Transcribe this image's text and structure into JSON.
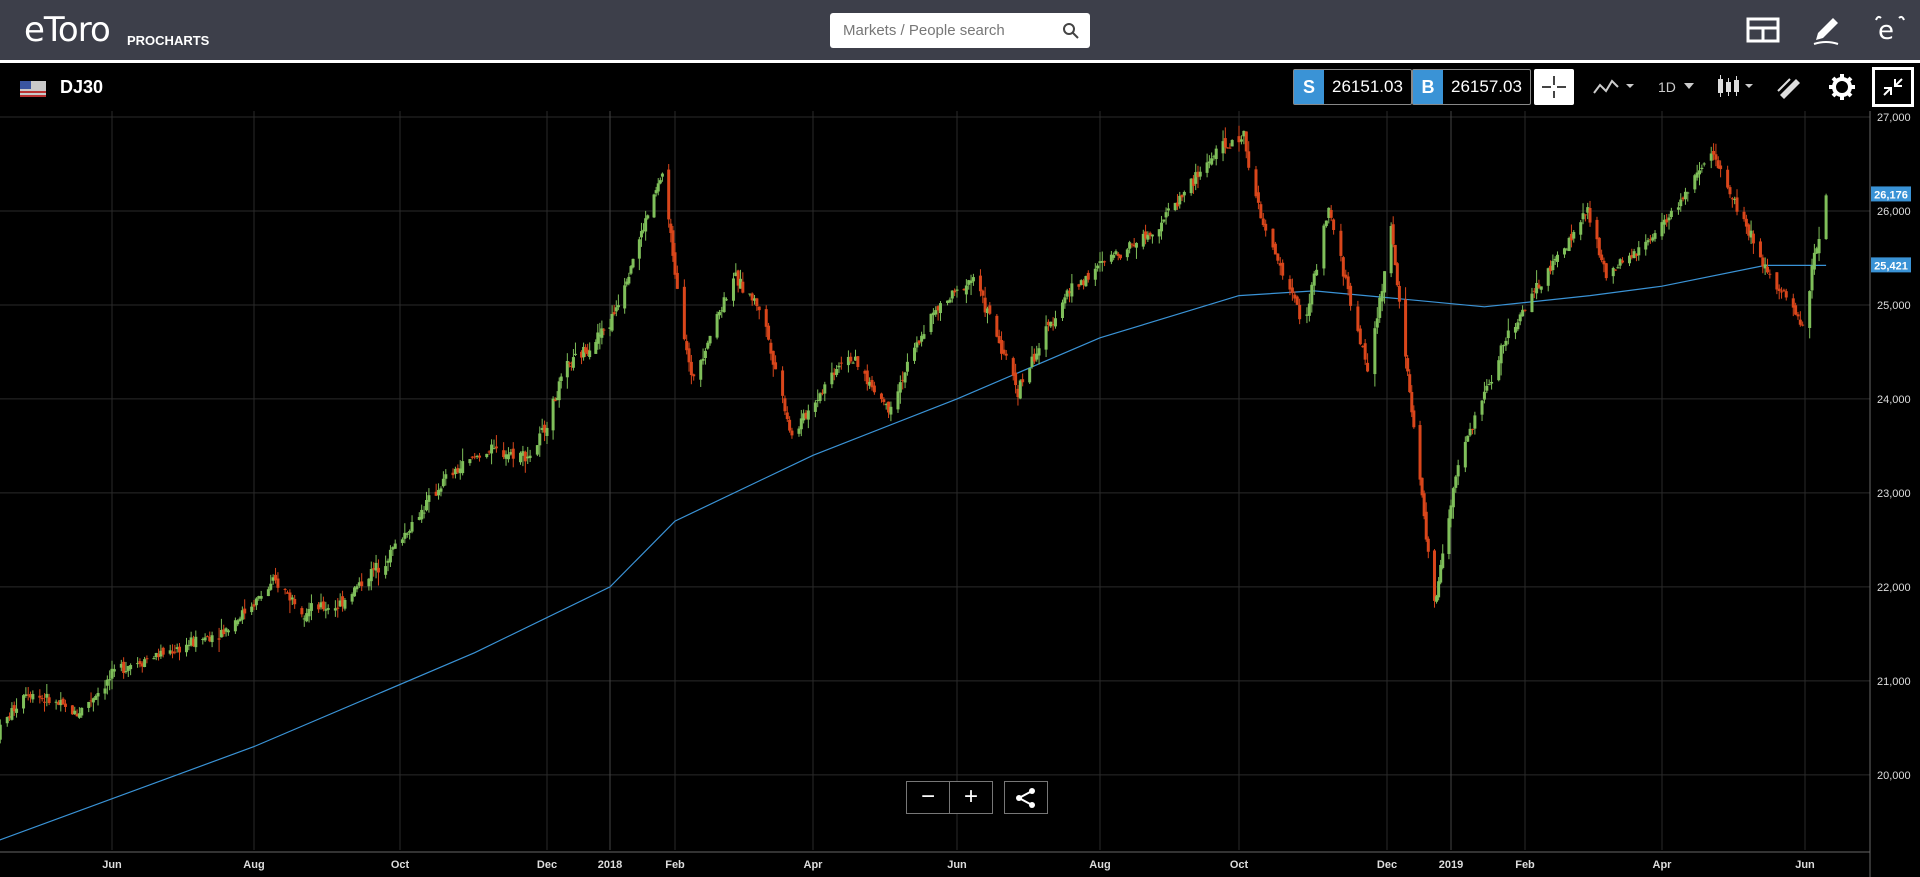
{
  "header": {
    "logo": "eToro",
    "brand_sub": "PROCHARTS",
    "search_placeholder": "Markets / People search"
  },
  "instrument": {
    "symbol": "DJ30",
    "sell_label": "S",
    "sell_price": "26151.03",
    "buy_label": "B",
    "buy_price": "26157.03",
    "interval": "1D"
  },
  "colors": {
    "up": "#7fbf5a",
    "down": "#d9461b",
    "ma": "#3a93d6",
    "accent": "#3a93d6"
  },
  "chart_data": {
    "type": "candlestick",
    "y_range": [
      19200,
      27000
    ],
    "y_ticks": [
      "27,000",
      "26,000",
      "25,000",
      "24,000",
      "23,000",
      "22,000",
      "21,000",
      "20,000"
    ],
    "y_tick_values": [
      27000,
      26000,
      25000,
      24000,
      23000,
      22000,
      21000,
      20000
    ],
    "x_labels": [
      "Jun",
      "Aug",
      "Oct",
      "Dec",
      "2018",
      "Feb",
      "Apr",
      "Jun",
      "Aug",
      "Oct",
      "Dec",
      "2019",
      "Feb",
      "Apr",
      "Jun"
    ],
    "x_dates": [
      "2017-06-01",
      "2017-08-01",
      "2017-10-01",
      "2017-12-01",
      "2018-01-01",
      "2018-02-01",
      "2018-04-01",
      "2018-06-01",
      "2018-08-01",
      "2018-10-01",
      "2018-12-01",
      "2019-01-01",
      "2019-02-01",
      "2019-04-01",
      "2019-06-01"
    ],
    "price_path": [
      [
        "2017-04-13",
        20450
      ],
      [
        "2017-04-25",
        20900
      ],
      [
        "2017-05-17",
        20650
      ],
      [
        "2017-06-05",
        21150
      ],
      [
        "2017-06-30",
        21350
      ],
      [
        "2017-07-20",
        21550
      ],
      [
        "2017-08-10",
        22050
      ],
      [
        "2017-08-22",
        21750
      ],
      [
        "2017-09-05",
        21800
      ],
      [
        "2017-09-25",
        22300
      ],
      [
        "2017-10-20",
        23150
      ],
      [
        "2017-11-05",
        23450
      ],
      [
        "2017-11-25",
        23400
      ],
      [
        "2017-12-10",
        24300
      ],
      [
        "2018-01-01",
        24800
      ],
      [
        "2018-01-26",
        26400
      ],
      [
        "2018-02-08",
        24200
      ],
      [
        "2018-02-26",
        25300
      ],
      [
        "2018-03-10",
        24950
      ],
      [
        "2018-03-23",
        23600
      ],
      [
        "2018-04-15",
        24500
      ],
      [
        "2018-05-03",
        23900
      ],
      [
        "2018-05-20",
        24850
      ],
      [
        "2018-06-08",
        25300
      ],
      [
        "2018-06-27",
        24100
      ],
      [
        "2018-07-17",
        25100
      ],
      [
        "2018-08-05",
        25500
      ],
      [
        "2018-08-25",
        25800
      ],
      [
        "2018-09-20",
        26600
      ],
      [
        "2018-10-03",
        26800
      ],
      [
        "2018-10-10",
        25900
      ],
      [
        "2018-10-28",
        24800
      ],
      [
        "2018-11-07",
        26000
      ],
      [
        "2018-11-23",
        24300
      ],
      [
        "2018-12-03",
        25800
      ],
      [
        "2018-12-24",
        21800
      ],
      [
        "2019-01-05",
        23400
      ],
      [
        "2019-01-25",
        24700
      ],
      [
        "2019-02-28",
        26000
      ],
      [
        "2019-03-08",
        25300
      ],
      [
        "2019-03-28",
        25700
      ],
      [
        "2019-04-23",
        26600
      ],
      [
        "2019-05-13",
        25500
      ],
      [
        "2019-05-31",
        24800
      ],
      [
        "2019-06-10",
        26180
      ]
    ],
    "moving_average": {
      "label": "25,421",
      "path": [
        [
          "2017-04-13",
          19300
        ],
        [
          "2017-08-01",
          20300
        ],
        [
          "2017-11-01",
          21300
        ],
        [
          "2018-01-01",
          22000
        ],
        [
          "2018-02-01",
          22700
        ],
        [
          "2018-04-01",
          23400
        ],
        [
          "2018-06-01",
          24000
        ],
        [
          "2018-08-01",
          24650
        ],
        [
          "2018-10-01",
          25100
        ],
        [
          "2018-11-01",
          25150
        ],
        [
          "2018-12-15",
          25050
        ],
        [
          "2019-01-15",
          24980
        ],
        [
          "2019-03-01",
          25100
        ],
        [
          "2019-04-01",
          25200
        ],
        [
          "2019-05-15",
          25421
        ],
        [
          "2019-06-10",
          25421
        ]
      ]
    },
    "last_price_label": "26,176",
    "last_price_value": 26176,
    "ma_last_value": 25421
  },
  "controls": {
    "zoom_out": "−",
    "zoom_in": "+"
  }
}
